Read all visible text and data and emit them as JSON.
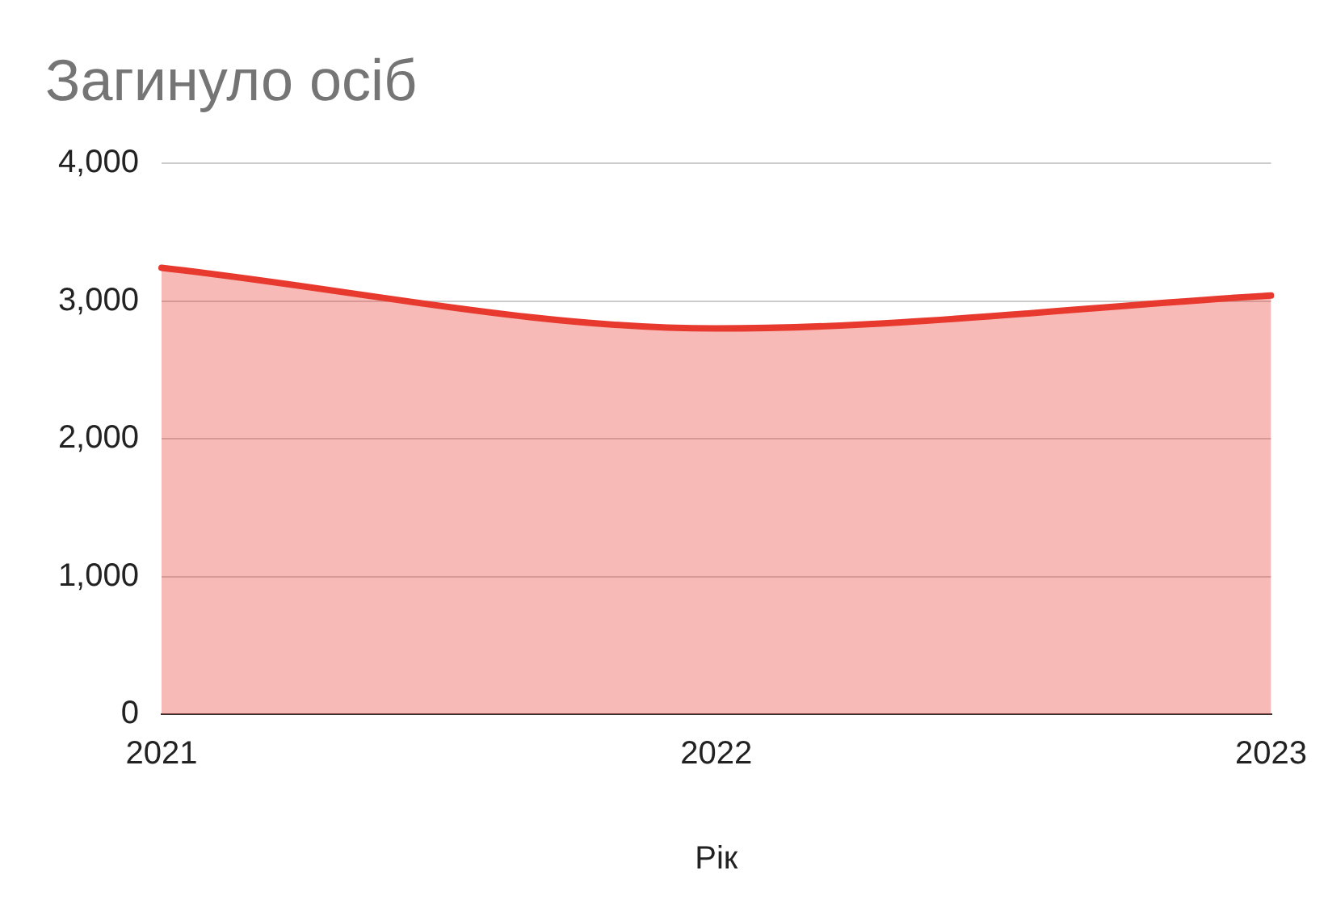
{
  "chart_data": {
    "type": "area",
    "title": "Загинуло осіб",
    "xlabel": "Рік",
    "categories": [
      "2021",
      "2022",
      "2023"
    ],
    "values": [
      3240,
      2800,
      3040
    ],
    "color": "#e8392f",
    "ylim": [
      0,
      4000
    ],
    "yticks": [
      0,
      {
        "value": 1000,
        "label": "1,000"
      },
      {
        "value": 2000,
        "label": "2,000"
      },
      {
        "value": 3000,
        "label": "3,000"
      },
      {
        "value": 4000,
        "label": "4,000"
      }
    ],
    "grid": "y",
    "legend": false
  }
}
